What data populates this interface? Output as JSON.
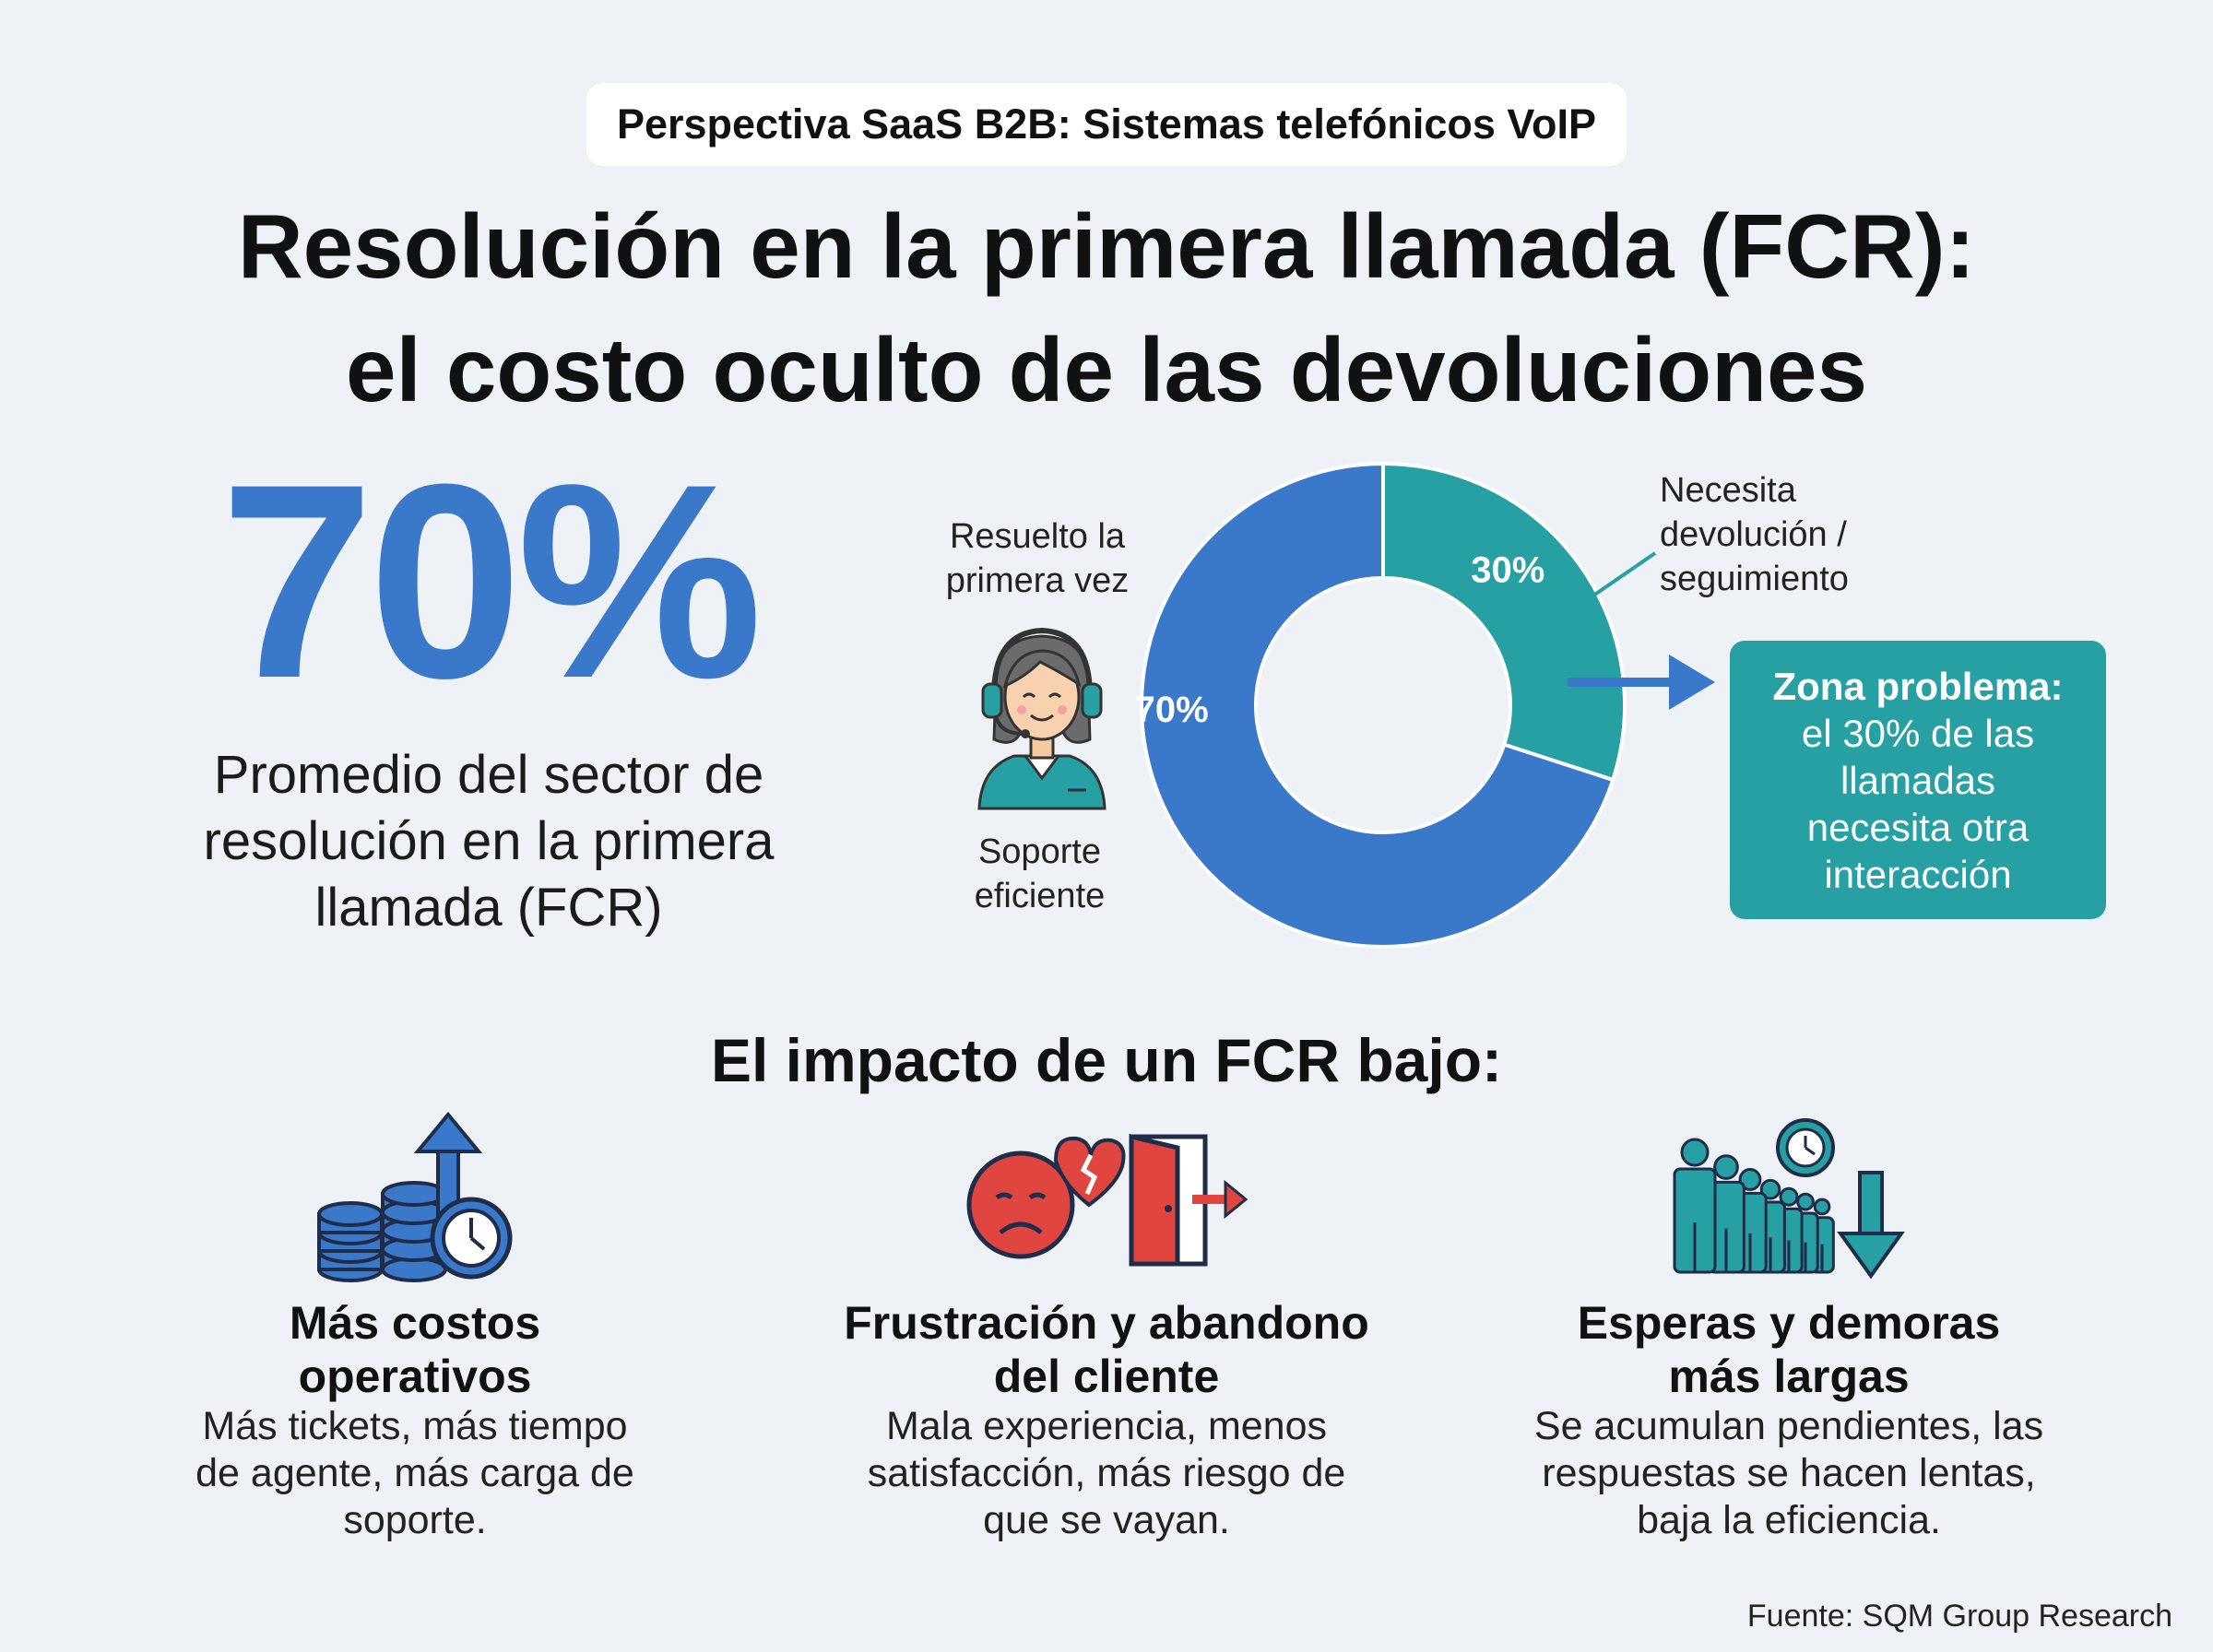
{
  "header": {
    "tag": "Perspectiva SaaS B2B: Sistemas telefónicos VoIP",
    "title_line1": "Resolución en la primera llamada (FCR):",
    "title_line2": "el costo oculto de las devoluciones"
  },
  "hero": {
    "big_value": "70%",
    "description_lines": [
      "Promedio del sector de",
      "resolución en la primera",
      "llamada (FCR)"
    ]
  },
  "chart_data": {
    "type": "pie",
    "categories": [
      "Resuelto la primera vez",
      "Necesita devolución / seguimiento"
    ],
    "values": [
      70,
      30
    ],
    "value_labels": [
      "70%",
      "30%"
    ],
    "colors": [
      "#3a78c9",
      "#26a0a2"
    ]
  },
  "chart_labels": {
    "resolved_lines": [
      "Resuelto la",
      "primera vez"
    ],
    "support_lines": [
      "Soporte",
      "eficiente"
    ],
    "needs_lines": [
      "Necesita",
      "devolución /",
      "seguimiento"
    ]
  },
  "problem": {
    "heading": "Zona problema:",
    "text_lines": [
      "el 30% de las",
      "llamadas",
      "necesita otra",
      "interacción"
    ]
  },
  "impact": {
    "title": "El impacto de un FCR bajo:",
    "cards": [
      {
        "icon": "coins-clock-arrow-icon",
        "title_lines": [
          "Más costos",
          "operativos"
        ],
        "text_lines": [
          "Más tickets, más tiempo",
          "de agente, más carga de",
          "soporte."
        ]
      },
      {
        "icon": "sad-face-exit-door-icon",
        "title_lines": [
          "Frustración y abandono",
          "del cliente"
        ],
        "text_lines": [
          "Mala experiencia, menos",
          "satisfacción, más riesgo de",
          "que se vayan."
        ]
      },
      {
        "icon": "queue-clock-arrow-icon",
        "title_lines": [
          "Esperas y demoras",
          "más largas"
        ],
        "text_lines": [
          "Se acumulan pendientes, las",
          "respuestas se hacen lentas,",
          "baja la eficiencia."
        ]
      }
    ]
  },
  "footer": {
    "source": "Fuente: SQM Group Research"
  },
  "colors": {
    "blue": "#3a78c9",
    "teal": "#26a0a2",
    "red": "#e0463f",
    "background": "#eef2f6"
  }
}
